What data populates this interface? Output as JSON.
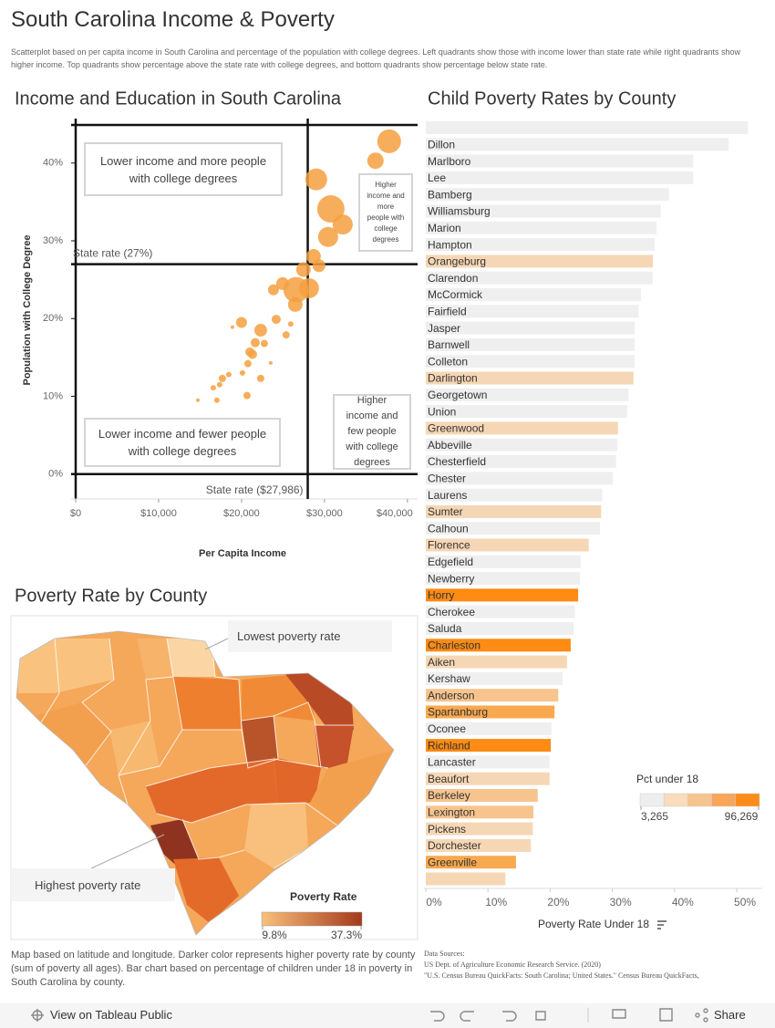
{
  "header": {
    "title": "South Carolina Income & Poverty",
    "subtitle": "Scatterplot based on per capita income in South Carolina and percentage of the population with college degrees.  Left quadrants show those with income lower than state rate while right quadrants show higher income.  Top quadrants show percentage above the state rate with college degrees, and bottom quadrants show percentage below state rate."
  },
  "chart_data": [
    {
      "type": "scatter",
      "title": "Income and Education in South Carolina",
      "x_label": "Per Capita Income",
      "y_label": "Population with College Degree",
      "color": "#f4a040",
      "x": [
        37800,
        36150,
        29010,
        30770,
        32200,
        30440,
        28680,
        29340,
        27470,
        28130,
        26590,
        24950,
        23850,
        26480,
        24180,
        25930,
        25380,
        20000,
        22310,
        22750,
        21650,
        21320,
        21000,
        20770,
        22310,
        20110,
        18460,
        17690,
        17360,
        16590,
        20660,
        17030,
        14730,
        18900,
        23520
      ],
      "values": [
        42.8,
        40.3,
        37.9,
        34.1,
        32.1,
        30.5,
        28.0,
        26.8,
        26.3,
        23.9,
        23.7,
        24.5,
        23.7,
        21.8,
        19.9,
        19.3,
        17.9,
        19.5,
        18.5,
        16.8,
        16.9,
        15.4,
        15.7,
        14.2,
        12.3,
        13.0,
        12.8,
        12.3,
        11.5,
        11.1,
        10.1,
        9.5,
        9.5,
        18.9,
        14.3
      ],
      "sizes": [
        13,
        9,
        12,
        15,
        11,
        11,
        8,
        7,
        8,
        11,
        14,
        7,
        6,
        8,
        5,
        3,
        4,
        6,
        7,
        4,
        5,
        5,
        5,
        4,
        4,
        3,
        3,
        4,
        3,
        3,
        4,
        3,
        2,
        2,
        2
      ],
      "xlim": [
        0,
        40900
      ],
      "ylim": [
        -3.2,
        44.9
      ],
      "xticks": [
        {
          "value": 0,
          "label": "$0"
        },
        {
          "value": 10000,
          "label": "$10,000"
        },
        {
          "value": 20000,
          "label": "$20,000"
        },
        {
          "value": 30000,
          "label": "$30,000"
        },
        {
          "value": 40000,
          "label": "$40,000"
        }
      ],
      "yticks": [
        {
          "value": 0,
          "label": "0%"
        },
        {
          "value": 10,
          "label": "10%"
        },
        {
          "value": 20,
          "label": "20%"
        },
        {
          "value": 30,
          "label": "30%"
        },
        {
          "value": 40,
          "label": "40%"
        }
      ],
      "reference_lines": [
        {
          "axis": "y",
          "value": 27,
          "label": "State rate (27%)"
        },
        {
          "axis": "x",
          "value": 27986,
          "label": "State rate ($27,986)"
        }
      ],
      "annotations": [
        "Lower income and more people with college degrees",
        "Higher income and more people with college degrees",
        "Lower income and fewer people with college degrees",
        "Higher income and few people with college degrees"
      ]
    },
    {
      "type": "bar",
      "orientation": "horizontal",
      "title": "Child Poverty Rates by County",
      "x_label": "Poverty Rate Under 18",
      "categories": [
        null,
        "Dillon",
        "Marlboro",
        "Lee",
        "Bamberg",
        "Williamsburg",
        "Marion",
        "Hampton",
        "Orangeburg",
        "Clarendon",
        "McCormick",
        "Fairfield",
        "Jasper",
        "Barnwell",
        "Colleton",
        "Darlington",
        "Georgetown",
        "Union",
        "Greenwood",
        "Abbeville",
        "Chesterfield",
        "Chester",
        "Laurens",
        "Sumter",
        "Calhoun",
        "Florence",
        "Edgefield",
        "Newberry",
        "Horry",
        "Cherokee",
        "Saluda",
        "Charleston",
        "Aiken",
        "Kershaw",
        "Anderson",
        "Spartanburg",
        "Oconee",
        "Richland",
        "Lancaster",
        "Beaufort",
        "Berkeley",
        "Lexington",
        "Pickens",
        "Dorchester",
        "Greenville",
        null
      ],
      "values": [
        51.8,
        48.7,
        43.0,
        43.0,
        39.1,
        37.8,
        37.1,
        36.8,
        36.5,
        36.5,
        34.6,
        34.2,
        33.6,
        33.6,
        33.6,
        33.4,
        32.6,
        32.4,
        30.9,
        30.8,
        30.6,
        30.1,
        28.4,
        28.2,
        28.0,
        26.2,
        24.9,
        24.8,
        24.5,
        24.0,
        23.8,
        23.3,
        22.7,
        22.0,
        21.3,
        20.7,
        20.2,
        20.1,
        19.9,
        19.9,
        18.0,
        17.3,
        17.2,
        16.9,
        14.5,
        12.8
      ],
      "colors": [
        "#efefef",
        "#efefef",
        "#efefef",
        "#efefef",
        "#efefef",
        "#efefef",
        "#efefef",
        "#efefef",
        "#f6d7b5",
        "#efefef",
        "#efefef",
        "#efefef",
        "#efefef",
        "#efefef",
        "#efefef",
        "#f6d7b5",
        "#efefef",
        "#efefef",
        "#f6d7b5",
        "#efefef",
        "#efefef",
        "#efefef",
        "#efefef",
        "#f6d7b5",
        "#efefef",
        "#f6d7b5",
        "#efefef",
        "#efefef",
        "#fd8b14",
        "#efefef",
        "#efefef",
        "#fd8b14",
        "#f6d7b5",
        "#efefef",
        "#f7c48e",
        "#f8a94f",
        "#efefef",
        "#fd8b14",
        "#efefef",
        "#f6d7b5",
        "#f7c48e",
        "#f7c48e",
        "#f6d7b5",
        "#f6d7b5",
        "#f8a94f",
        "#f6d7b5"
      ],
      "xlim": [
        0,
        54.1
      ],
      "xticks": [
        {
          "value": 0,
          "label": "0%"
        },
        {
          "value": 10,
          "label": "10%"
        },
        {
          "value": 20,
          "label": "20%"
        },
        {
          "value": 30,
          "label": "30%"
        },
        {
          "value": 40,
          "label": "40%"
        },
        {
          "value": 50,
          "label": "50%"
        }
      ],
      "legend": {
        "title": "Pct under 18",
        "colors": [
          "#eeeeee",
          "#f9dcbb",
          "#f7c48f",
          "#f7a65a",
          "#fd8c1b"
        ],
        "min": {
          "value": 3265,
          "label": "3,265"
        },
        "max": {
          "value": 96269,
          "label": "96,269"
        }
      }
    }
  ],
  "map": {
    "title": "Poverty Rate by County",
    "annotations": [
      "Lowest poverty rate",
      "Highest poverty rate"
    ],
    "legend": {
      "title": "Poverty Rate",
      "colors": [
        "#f9c07a",
        "#a3391d"
      ],
      "min": {
        "value": 9.8,
        "label": "9.8%"
      },
      "max": {
        "value": 37.3,
        "label": "37.3%"
      }
    }
  },
  "footer": {
    "note": "Map based on latitude and longitude.  Darker color represents higher poverty rate by county (sum of poverty all ages).  Bar chart based on percentage of children under 18 in poverty in South Carolina by county.",
    "sources": [
      "Data Sources:",
      "US Dept. of Agriculture Economic Research Service. (2020)",
      "\"U.S. Census Bureau QuickFacts: South Carolina; United States.\" Census Bureau QuickFacts,"
    ]
  },
  "toolbar": {
    "view": "View on Tableau Public",
    "share": "Share"
  }
}
